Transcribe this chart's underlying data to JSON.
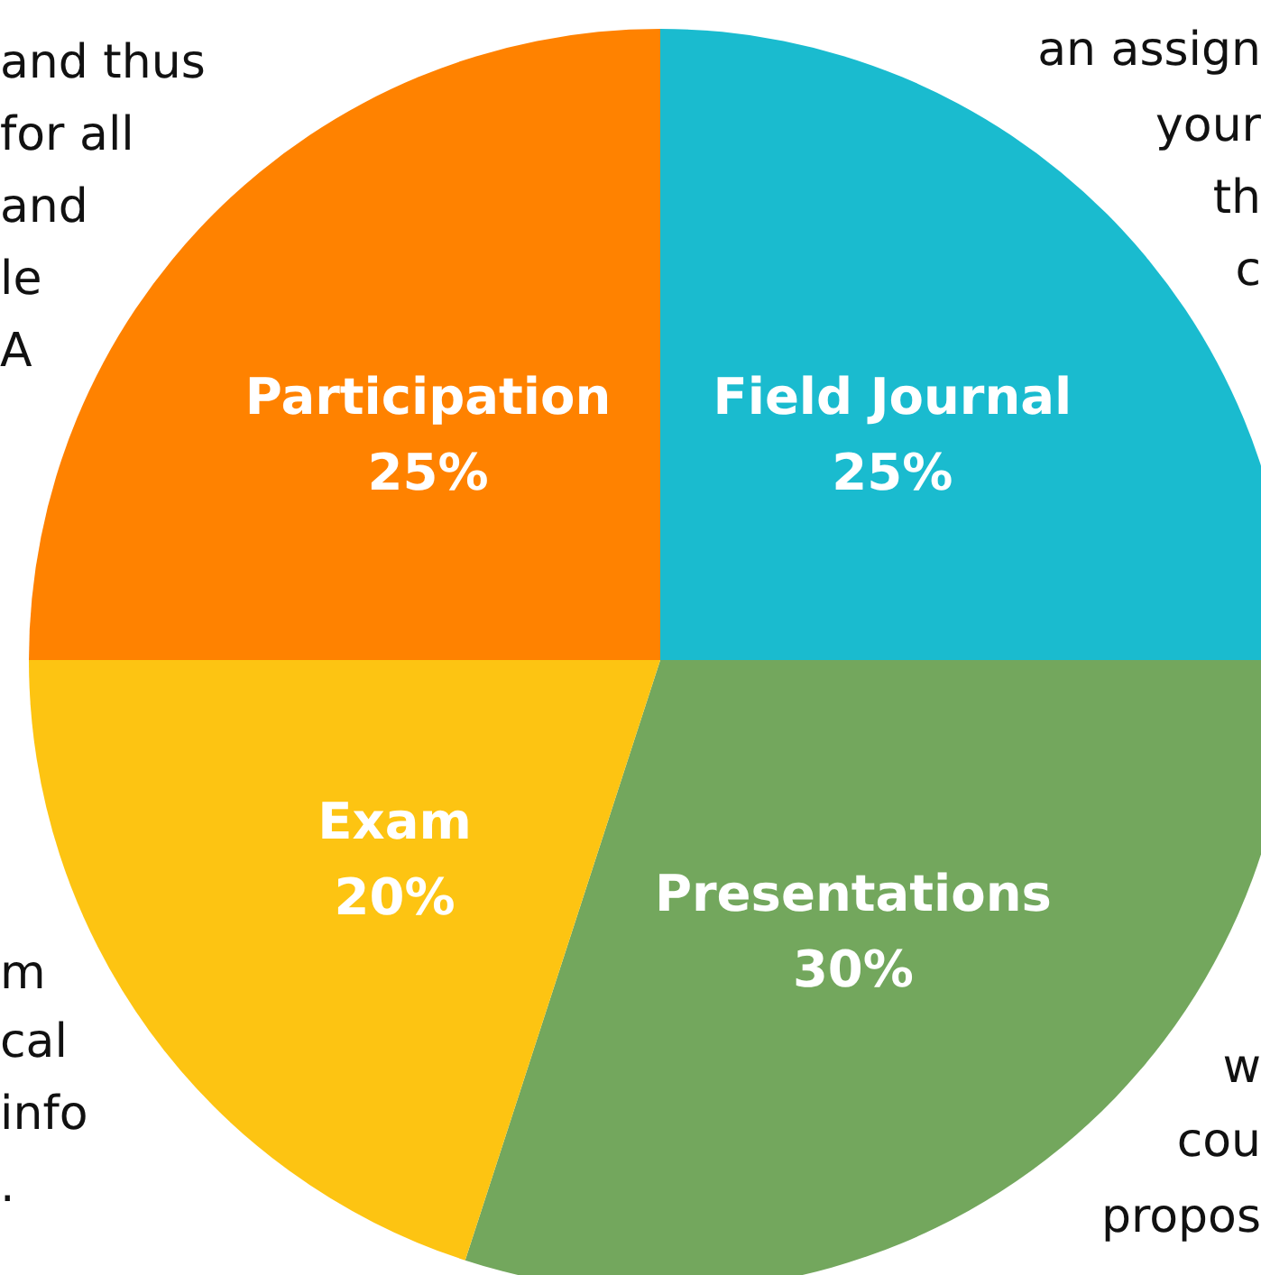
{
  "chart_data": {
    "type": "pie",
    "categories": [
      "Field Journal",
      "Presentations",
      "Exam",
      "Participation"
    ],
    "values": [
      25,
      30,
      20,
      25
    ],
    "colors": [
      "#1abbcf",
      "#73a75d",
      "#fdc412",
      "#ff8200"
    ],
    "value_labels": [
      "25%",
      "30%",
      "20%",
      "25%"
    ],
    "annotations": [
      "and thus",
      "for all",
      "and",
      "le",
      "A",
      "m",
      "cal",
      "info",
      ".",
      "an assign",
      "your",
      "th",
      "c",
      "w",
      "cou",
      "propos"
    ]
  }
}
